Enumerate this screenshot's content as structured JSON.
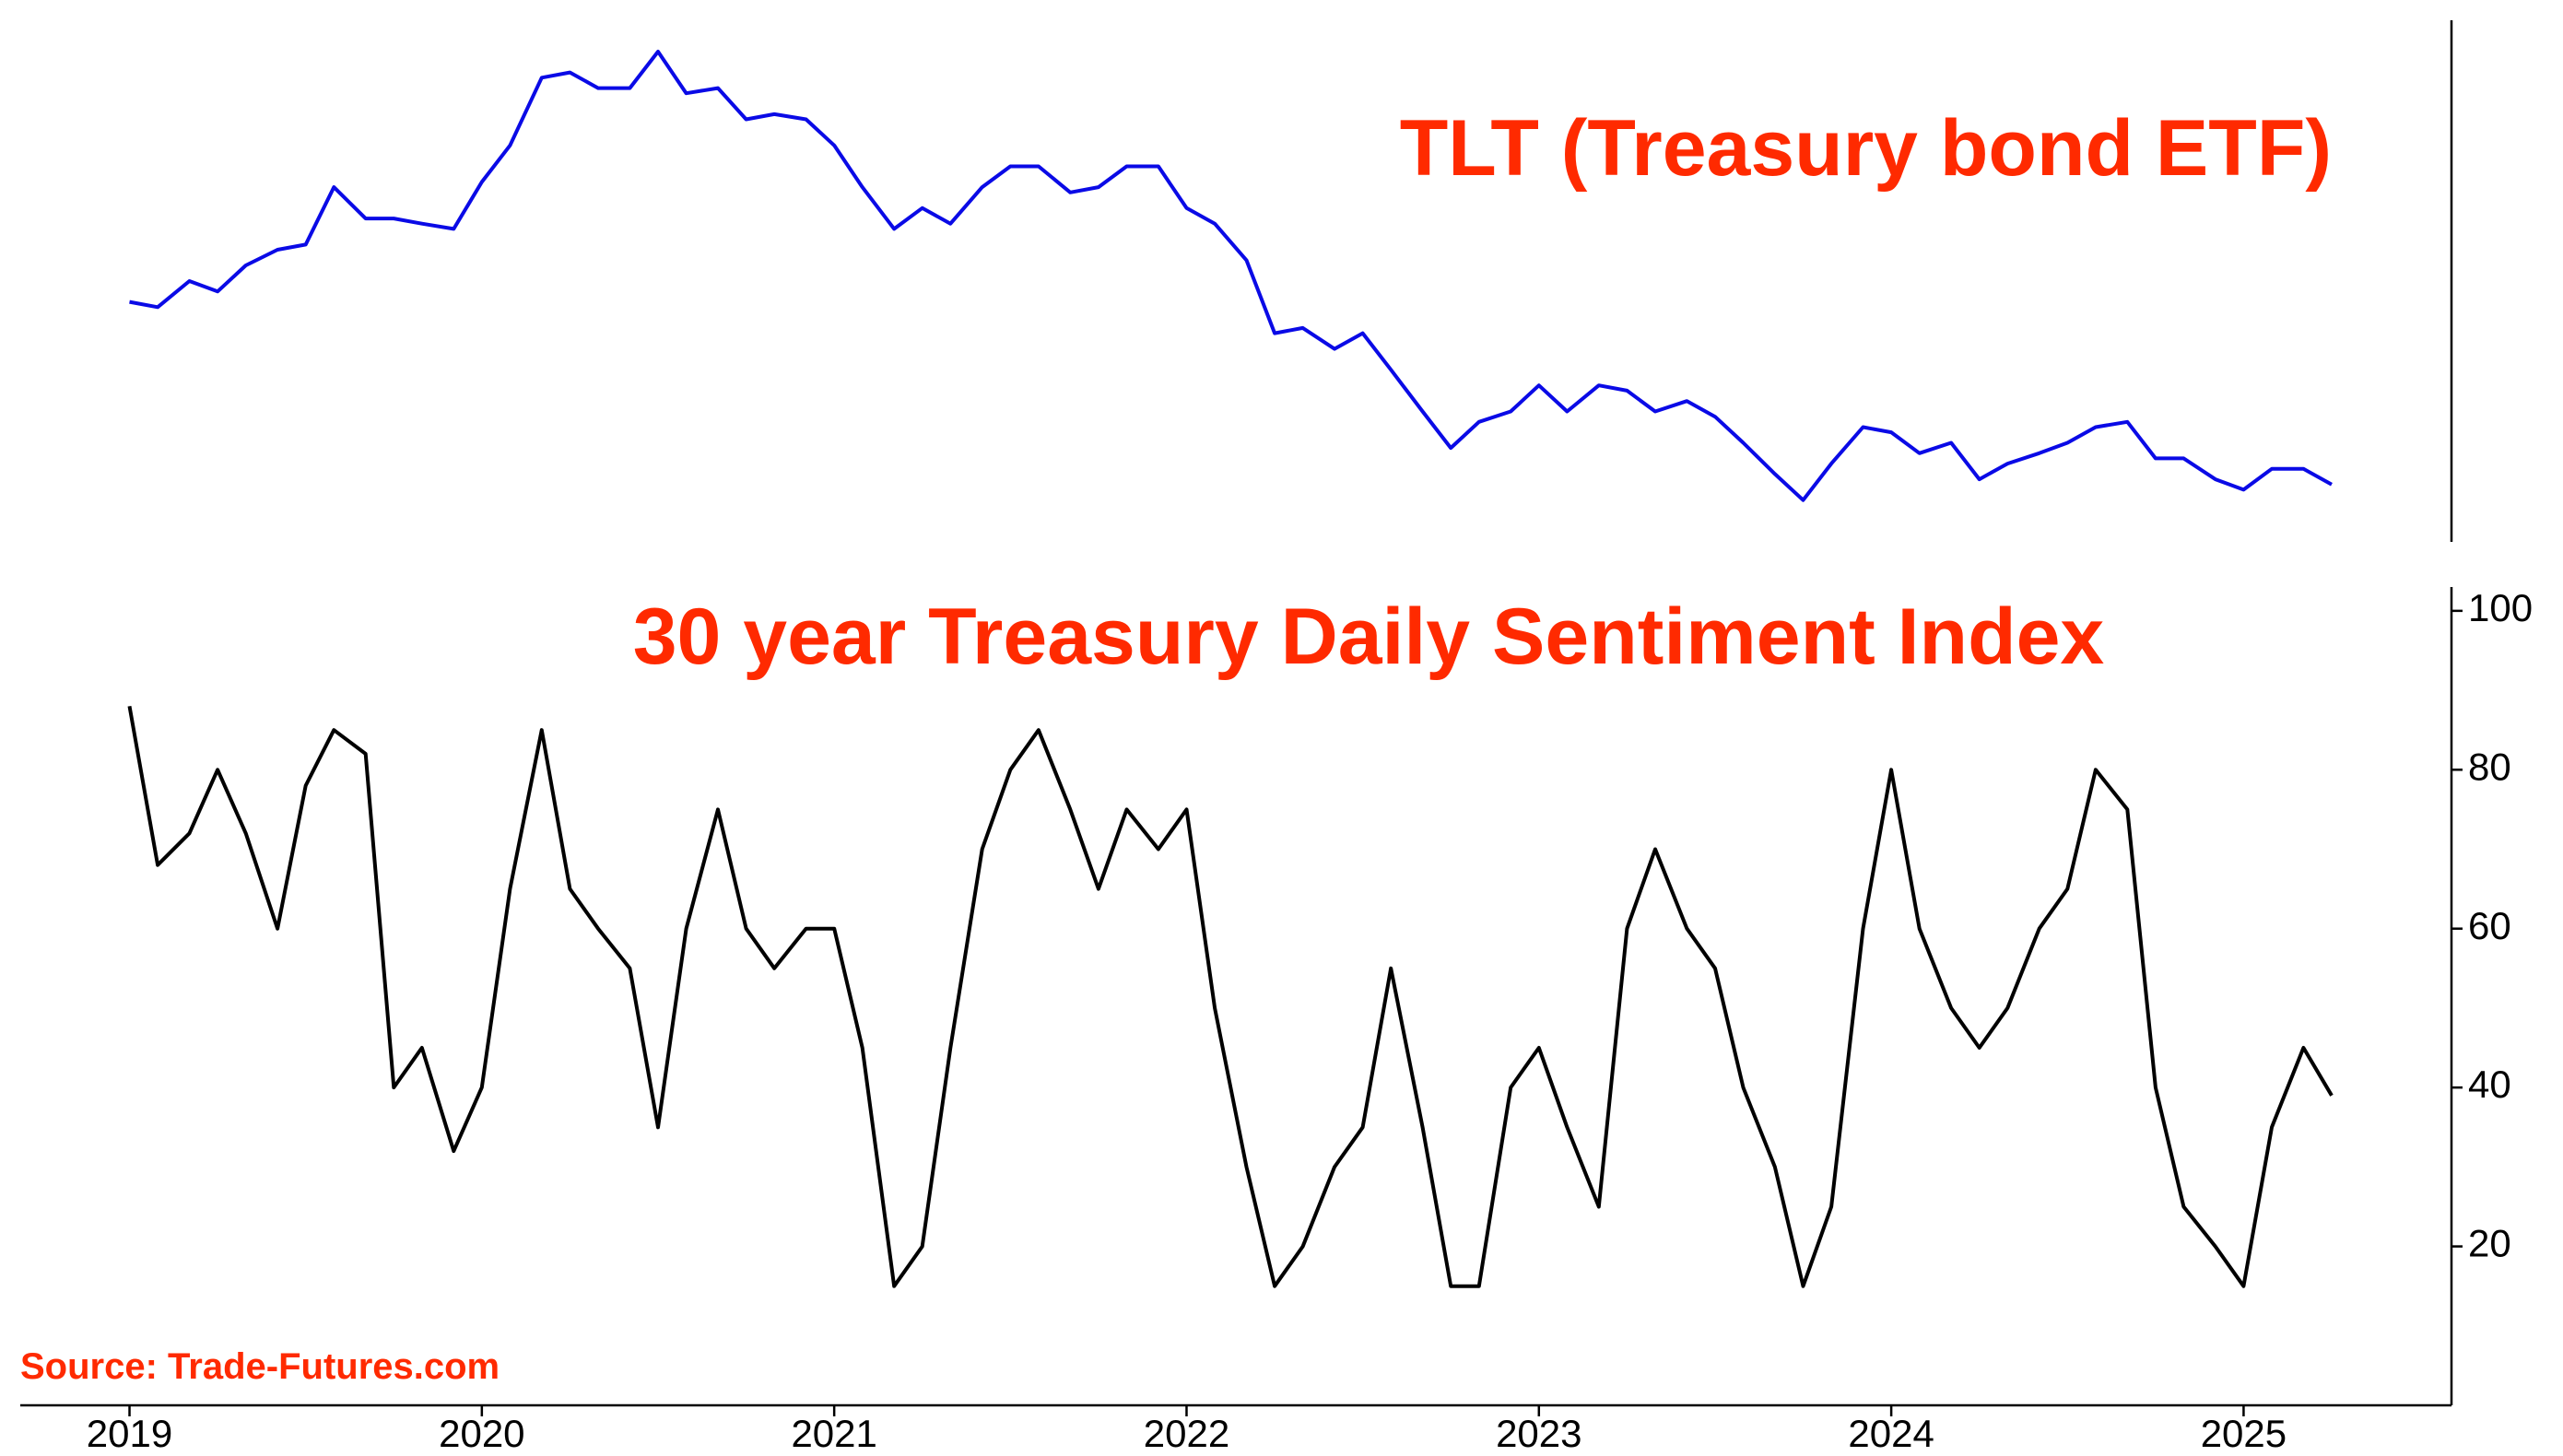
{
  "chart_data": [
    {
      "type": "line",
      "title": "TLT (Treasury bond ETF)",
      "xlim": [
        2018.69,
        2025.59
      ],
      "ylim": [
        76,
        176
      ],
      "x": [
        2019.0,
        2019.08,
        2019.17,
        2019.25,
        2019.33,
        2019.42,
        2019.5,
        2019.58,
        2019.67,
        2019.75,
        2019.83,
        2019.92,
        2020.0,
        2020.08,
        2020.17,
        2020.25,
        2020.33,
        2020.42,
        2020.5,
        2020.58,
        2020.67,
        2020.75,
        2020.83,
        2020.92,
        2021.0,
        2021.08,
        2021.17,
        2021.25,
        2021.33,
        2021.42,
        2021.5,
        2021.58,
        2021.67,
        2021.75,
        2021.83,
        2021.92,
        2022.0,
        2022.08,
        2022.17,
        2022.25,
        2022.33,
        2022.42,
        2022.5,
        2022.58,
        2022.67,
        2022.75,
        2022.83,
        2022.92,
        2023.0,
        2023.08,
        2023.17,
        2023.25,
        2023.33,
        2023.42,
        2023.5,
        2023.58,
        2023.67,
        2023.75,
        2023.83,
        2023.92,
        2024.0,
        2024.08,
        2024.17,
        2024.25,
        2024.33,
        2024.42,
        2024.5,
        2024.58,
        2024.67,
        2024.75,
        2024.83,
        2024.92,
        2025.0,
        2025.08,
        2025.17,
        2025.25
      ],
      "series": [
        {
          "name": "TLT",
          "color": "#0a0ae6",
          "values": [
            122,
            121,
            126,
            124,
            129,
            132,
            133,
            144,
            138,
            138,
            137,
            136,
            145,
            152,
            165,
            166,
            163,
            163,
            170,
            162,
            163,
            157,
            158,
            157,
            152,
            144,
            136,
            140,
            137,
            144,
            148,
            148,
            143,
            144,
            148,
            148,
            140,
            137,
            130,
            116,
            117,
            113,
            116,
            109,
            101,
            94,
            99,
            101,
            106,
            101,
            106,
            105,
            101,
            103,
            100,
            95,
            89,
            84,
            91,
            98,
            97,
            93,
            95,
            88,
            91,
            93,
            95,
            98,
            99,
            92,
            92,
            88,
            86,
            90,
            90,
            87
          ]
        }
      ]
    },
    {
      "type": "line",
      "title": "30 year Treasury Daily Sentiment Index",
      "source": "Source: Trade-Futures.com",
      "xlim": [
        2018.69,
        2025.59
      ],
      "ylim": [
        0,
        103
      ],
      "xticks": [
        2019,
        2020,
        2021,
        2022,
        2023,
        2024,
        2025
      ],
      "yticks": [
        20,
        40,
        60,
        80,
        100
      ],
      "x": [
        2019.0,
        2019.08,
        2019.17,
        2019.25,
        2019.33,
        2019.42,
        2019.5,
        2019.58,
        2019.67,
        2019.75,
        2019.83,
        2019.92,
        2020.0,
        2020.08,
        2020.17,
        2020.25,
        2020.33,
        2020.42,
        2020.5,
        2020.58,
        2020.67,
        2020.75,
        2020.83,
        2020.92,
        2021.0,
        2021.08,
        2021.17,
        2021.25,
        2021.33,
        2021.42,
        2021.5,
        2021.58,
        2021.67,
        2021.75,
        2021.83,
        2021.92,
        2022.0,
        2022.08,
        2022.17,
        2022.25,
        2022.33,
        2022.42,
        2022.5,
        2022.58,
        2022.67,
        2022.75,
        2022.83,
        2022.92,
        2023.0,
        2023.08,
        2023.17,
        2023.25,
        2023.33,
        2023.42,
        2023.5,
        2023.58,
        2023.67,
        2023.75,
        2023.83,
        2023.92,
        2024.0,
        2024.08,
        2024.17,
        2024.25,
        2024.33,
        2024.42,
        2024.5,
        2024.58,
        2024.67,
        2024.75,
        2024.83,
        2024.92,
        2025.0,
        2025.08,
        2025.17,
        2025.25
      ],
      "series": [
        {
          "name": "Sentiment",
          "color": "#000000",
          "values": [
            88,
            68,
            72,
            80,
            72,
            60,
            78,
            85,
            82,
            40,
            45,
            32,
            40,
            65,
            85,
            65,
            60,
            55,
            35,
            60,
            75,
            60,
            55,
            60,
            60,
            45,
            15,
            20,
            45,
            70,
            80,
            85,
            75,
            65,
            75,
            70,
            75,
            50,
            30,
            15,
            20,
            30,
            35,
            55,
            35,
            15,
            15,
            40,
            45,
            35,
            25,
            60,
            70,
            60,
            55,
            40,
            30,
            15,
            25,
            60,
            80,
            60,
            50,
            45,
            50,
            60,
            65,
            80,
            75,
            40,
            25,
            20,
            15,
            35,
            45,
            39
          ]
        }
      ]
    }
  ]
}
